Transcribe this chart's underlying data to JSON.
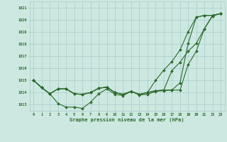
{
  "x": [
    0,
    1,
    2,
    3,
    4,
    5,
    6,
    7,
    8,
    9,
    10,
    11,
    12,
    13,
    14,
    15,
    16,
    17,
    18,
    19,
    20,
    21,
    22,
    23
  ],
  "line1": [
    1015.0,
    1014.4,
    1013.9,
    1013.1,
    1012.8,
    1012.8,
    1012.7,
    1013.2,
    1013.9,
    1014.3,
    1013.85,
    1013.75,
    1014.1,
    1013.8,
    1013.85,
    1014.1,
    1014.15,
    1014.2,
    1014.2,
    1016.3,
    1017.4,
    1019.25,
    1020.3,
    1020.5
  ],
  "line2": [
    1015.0,
    1014.4,
    1013.9,
    1014.3,
    1014.3,
    1013.9,
    1013.85,
    1014.0,
    1014.35,
    1014.45,
    1014.0,
    1013.85,
    1014.1,
    1013.85,
    1014.0,
    1014.15,
    1014.2,
    1015.8,
    1016.5,
    1017.4,
    1018.05,
    1019.25,
    1020.35,
    1020.5
  ],
  "line3": [
    1015.0,
    1014.4,
    1013.9,
    1014.3,
    1014.3,
    1013.9,
    1013.85,
    1014.0,
    1014.35,
    1014.45,
    1014.0,
    1013.85,
    1014.1,
    1013.85,
    1014.0,
    1015.0,
    1015.85,
    1016.55,
    1017.5,
    1019.0,
    1020.2,
    1020.35,
    1020.35,
    1020.5
  ],
  "line4": [
    1015.0,
    1014.4,
    1013.9,
    1014.3,
    1014.3,
    1013.9,
    1013.85,
    1014.0,
    1014.35,
    1014.45,
    1014.0,
    1013.85,
    1014.1,
    1013.85,
    1014.0,
    1014.15,
    1014.2,
    1014.2,
    1014.8,
    1018.05,
    1020.2,
    1020.35,
    1020.35,
    1020.5
  ],
  "line_color": "#2d6a2d",
  "bg_color": "#cce8e0",
  "grid_color": "#aacccc",
  "xlabel": "Graphe pression niveau de la mer (hPa)",
  "yticks": [
    1013,
    1014,
    1015,
    1016,
    1017,
    1018,
    1019,
    1020,
    1021
  ],
  "ylim_min": 1012.5,
  "ylim_max": 1021.5,
  "xlim_min": -0.5,
  "xlim_max": 23.5
}
